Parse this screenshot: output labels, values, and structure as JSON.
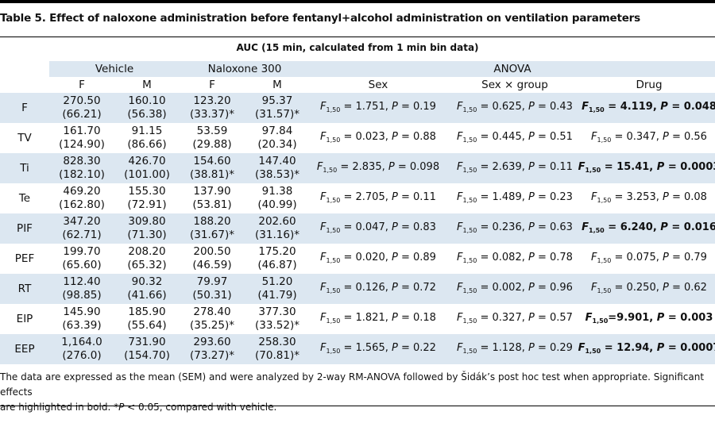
{
  "title": "Table 5. Effect of naloxone administration before fentanyl+alcohol administration on ventilation parameters",
  "auc_header": "AUC (15 min, calculated from 1 min bin data)",
  "groups": {
    "vehicle": "Vehicle",
    "naloxone": "Naloxone 300",
    "anova": "ANOVA"
  },
  "subheaders": {
    "vf": "F",
    "vm": "M",
    "nf": "F",
    "nm": "M",
    "sex": "Sex",
    "sxg": "Sex × group",
    "drug": "Drug"
  },
  "rows": [
    {
      "param": "F",
      "vf": {
        "mean": "270.50",
        "sem": "(66.21)"
      },
      "vm": {
        "mean": "160.10",
        "sem": "(56.38)"
      },
      "nf": {
        "mean": "123.20",
        "sem": "(33.37)*"
      },
      "nm": {
        "mean": "95.37",
        "sem": "(31.57)*"
      },
      "sex": {
        "f": "F",
        "df": "1,50",
        "val": "1.751",
        "p": "0.19"
      },
      "sxg": {
        "f": "F",
        "df": "1,50",
        "val": "0.625",
        "p": "0.43"
      },
      "drug": {
        "f": "F",
        "df": "1,50",
        "val": "4.119",
        "p": "0.048",
        "bold": true
      }
    },
    {
      "param": "TV",
      "vf": {
        "mean": "161.70",
        "sem": "(124.90)"
      },
      "vm": {
        "mean": "91.15",
        "sem": "(86.66)"
      },
      "nf": {
        "mean": "53.59",
        "sem": "(29.88)"
      },
      "nm": {
        "mean": "97.84",
        "sem": "(20.34)"
      },
      "sex": {
        "f": "F",
        "df": "1,50",
        "val": "0.023",
        "p": "0.88"
      },
      "sxg": {
        "f": "F",
        "df": "1,50",
        "val": "0.445",
        "p": "0.51"
      },
      "drug": {
        "f": "F",
        "df": "1,50",
        "val": "0.347",
        "p": "0.56",
        "bold": false
      }
    },
    {
      "param": "Ti",
      "vf": {
        "mean": "828.30",
        "sem": "(182.10)"
      },
      "vm": {
        "mean": "426.70",
        "sem": "(101.00)"
      },
      "nf": {
        "mean": "154.60",
        "sem": "(38.81)*"
      },
      "nm": {
        "mean": "147.40",
        "sem": "(38.53)*"
      },
      "sex": {
        "f": "F",
        "df": "1,50",
        "val": "2.835",
        "p": "0.098"
      },
      "sxg": {
        "f": "F",
        "df": "1,50",
        "val": "2.639",
        "p": "0.11"
      },
      "drug": {
        "f": "F",
        "df": "1,50",
        "val": "15.41",
        "p": "0.0003",
        "bold": true
      }
    },
    {
      "param": "Te",
      "vf": {
        "mean": "469.20",
        "sem": "(162.80)"
      },
      "vm": {
        "mean": "155.30",
        "sem": "(72.91)"
      },
      "nf": {
        "mean": "137.90",
        "sem": "(53.81)"
      },
      "nm": {
        "mean": "91.38",
        "sem": "(40.99)"
      },
      "sex": {
        "f": "F",
        "df": "1,50",
        "val": "2.705",
        "p": "0.11"
      },
      "sxg": {
        "f": "F",
        "df": "1,50",
        "val": "1.489",
        "p": "0.23"
      },
      "drug": {
        "f": "F",
        "df": "1,50",
        "val": "3.253",
        "p": "0.08",
        "bold": false
      }
    },
    {
      "param": "PIF",
      "vf": {
        "mean": "347.20",
        "sem": "(62.71)"
      },
      "vm": {
        "mean": "309.80",
        "sem": "(71.30)"
      },
      "nf": {
        "mean": "188.20",
        "sem": "(31.67)*"
      },
      "nm": {
        "mean": "202.60",
        "sem": "(31.16)*"
      },
      "sex": {
        "f": "F",
        "df": "1,50",
        "val": "0.047",
        "p": "0.83"
      },
      "sxg": {
        "f": "F",
        "df": "1,50",
        "val": "0.236",
        "p": "0.63"
      },
      "drug": {
        "f": "F",
        "df": "1,50",
        "val": "6.240",
        "p": "0.016",
        "bold": true
      }
    },
    {
      "param": "PEF",
      "vf": {
        "mean": "199.70",
        "sem": "(65.60)"
      },
      "vm": {
        "mean": "208.20",
        "sem": "(65.32)"
      },
      "nf": {
        "mean": "200.50",
        "sem": "(46.59)"
      },
      "nm": {
        "mean": "175.20",
        "sem": "(46.87)"
      },
      "sex": {
        "f": "F",
        "df": "1,50",
        "val": "0.020",
        "p": "0.89"
      },
      "sxg": {
        "f": "F",
        "df": "1,50",
        "val": "0.082",
        "p": "0.78"
      },
      "drug": {
        "f": "F",
        "df": "1,50",
        "val": "0.075",
        "p": "0.79",
        "bold": false
      }
    },
    {
      "param": "RT",
      "vf": {
        "mean": "112.40",
        "sem": "(98.85)"
      },
      "vm": {
        "mean": "90.32",
        "sem": "(41.66)"
      },
      "nf": {
        "mean": "79.97",
        "sem": "(50.31)"
      },
      "nm": {
        "mean": "51.20",
        "sem": "(41.79)"
      },
      "sex": {
        "f": "F",
        "df": "1,50",
        "val": "0.126",
        "p": "0.72"
      },
      "sxg": {
        "f": "F",
        "df": "1,50",
        "val": "0.002",
        "p": "0.96"
      },
      "drug": {
        "f": "F",
        "df": "1,50",
        "val": "0.250",
        "p": "0.62",
        "bold": false
      }
    },
    {
      "param": "EIP",
      "vf": {
        "mean": "145.90",
        "sem": "(63.39)"
      },
      "vm": {
        "mean": "185.90",
        "sem": "(55.64)"
      },
      "nf": {
        "mean": "278.40",
        "sem": "(35.25)*"
      },
      "nm": {
        "mean": "377.30",
        "sem": "(33.52)*"
      },
      "sex": {
        "f": "F",
        "df": "1,50",
        "val": "1.821",
        "p": "0.18"
      },
      "sxg": {
        "f": "F",
        "df": "1,50",
        "val": "0.327",
        "p": "0.57"
      },
      "drug": {
        "f": "F",
        "df": "1,50",
        "val": "9.901",
        "p": "0.003",
        "bold": true,
        "tight": true
      }
    },
    {
      "param": "EEP",
      "vf": {
        "mean": "1,164.0",
        "sem": "(276.0)"
      },
      "vm": {
        "mean": "731.90",
        "sem": "(154.70)"
      },
      "nf": {
        "mean": "293.60",
        "sem": "(73.27)*"
      },
      "nm": {
        "mean": "258.30",
        "sem": "(70.81)*"
      },
      "sex": {
        "f": "F",
        "df": "1,50",
        "val": "1.565",
        "p": "0.22"
      },
      "sxg": {
        "f": "F",
        "df": "1,50",
        "val": "1.128",
        "p": "0.29"
      },
      "drug": {
        "f": "F",
        "df": "1,50",
        "val": "12.94",
        "p": "0.0007",
        "bold": true
      }
    }
  ],
  "footnote_line1": "The data are expressed as the mean (SEM) and were analyzed by 2-way RM-ANOVA followed by Šidák’s post hoc test when appropriate. Significant effects",
  "footnote_line2_a": "are highlighted in bold. *",
  "footnote_line2_p": "P",
  "footnote_line2_b": " < 0.05, compared with vehicle.",
  "colors": {
    "shade": "#dce7f1",
    "rule": "#000000",
    "text": "#111111"
  }
}
